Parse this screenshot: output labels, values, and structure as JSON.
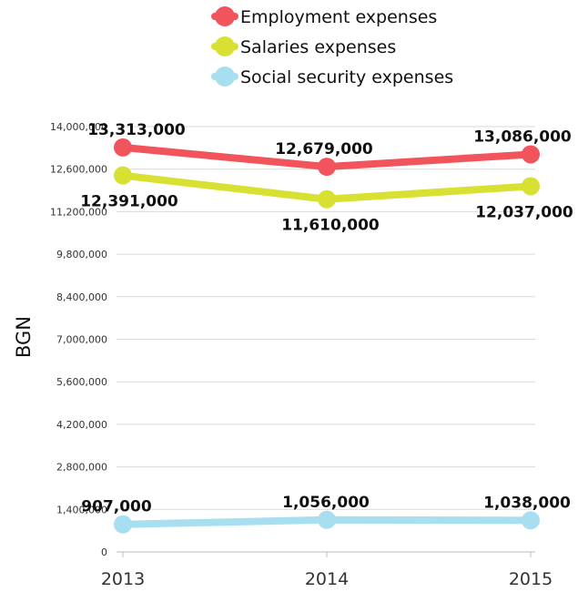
{
  "chart_data": {
    "type": "line",
    "categories": [
      "2013",
      "2014",
      "2015"
    ],
    "ylabel": "BGN",
    "xlabel": "",
    "ylim": [
      0,
      14000000
    ],
    "yticks": [
      0,
      1400000,
      2800000,
      4200000,
      5600000,
      7000000,
      8400000,
      9800000,
      11200000,
      12600000,
      14000000
    ],
    "ytick_labels": [
      "0",
      "1,400,000",
      "2,800,000",
      "4,200,000",
      "5,600,000",
      "7,000,000",
      "8,400,000",
      "9,800,000",
      "11,200,000",
      "12,600,000",
      "14,000,000"
    ],
    "grid": "horizontal",
    "legend_position": "top",
    "series": [
      {
        "name": "Employment expenses",
        "color": "#f2545b",
        "values": [
          13313000,
          12679000,
          13086000
        ],
        "labels": [
          "13,313,000",
          "12,679,000",
          "13,086,000"
        ]
      },
      {
        "name": "Salaries expenses",
        "color": "#d8e032",
        "values": [
          12391000,
          11610000,
          12037000
        ],
        "labels": [
          "12,391,000",
          "11,610,000",
          "12,037,000"
        ]
      },
      {
        "name": "Social security expenses",
        "color": "#a8dff0",
        "values": [
          907000,
          1056000,
          1038000
        ],
        "labels": [
          "907,000",
          "1,056,000",
          "1,038,000"
        ]
      }
    ]
  }
}
